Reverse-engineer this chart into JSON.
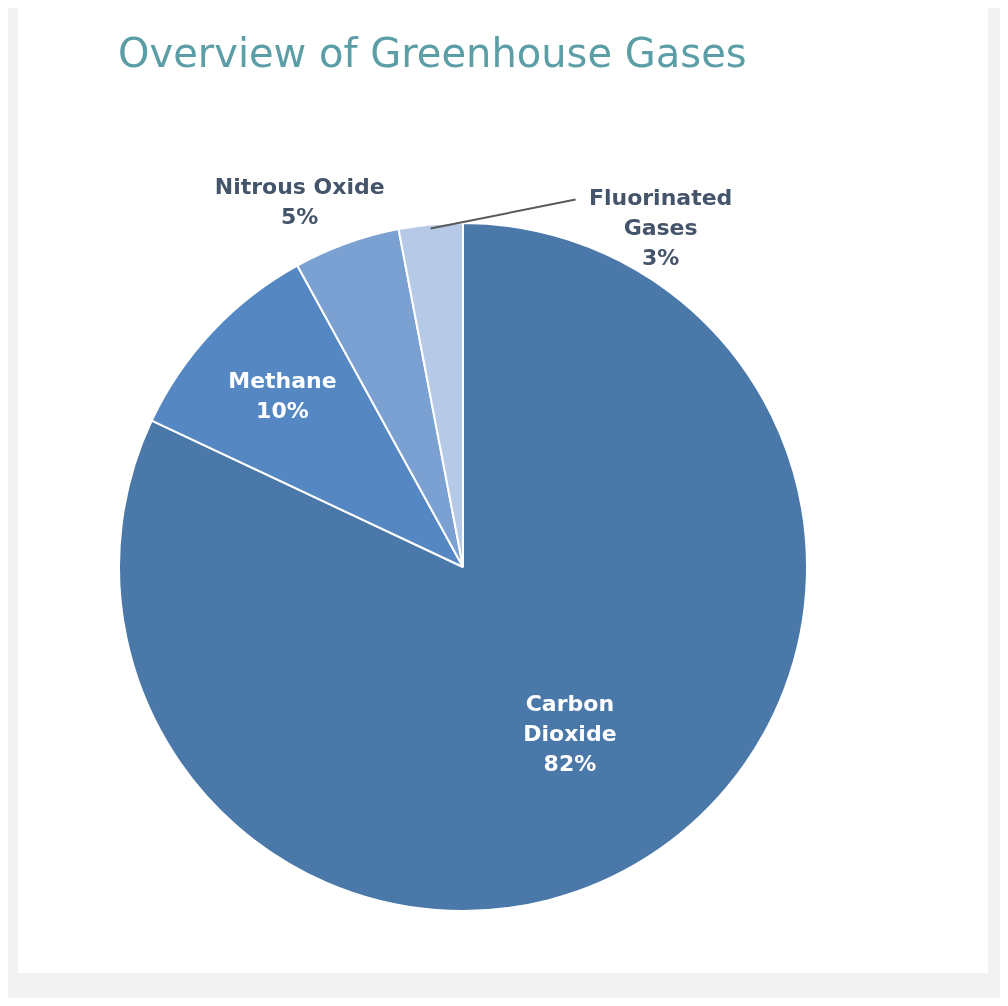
{
  "chart_data": {
    "type": "pie",
    "title": "Overview of Greenhouse Gases",
    "categories": [
      "Carbon Dioxide",
      "Methane",
      "Nitrous Oxide",
      "Fluorinated Gases"
    ],
    "values": [
      82,
      10,
      5,
      3
    ],
    "colors": [
      "#4a78a9",
      "#5587c2",
      "#7ba0d2",
      "#b6c9e6"
    ],
    "value_labels": [
      "82%",
      "10%",
      "5%",
      "3%"
    ],
    "legend": false
  }
}
